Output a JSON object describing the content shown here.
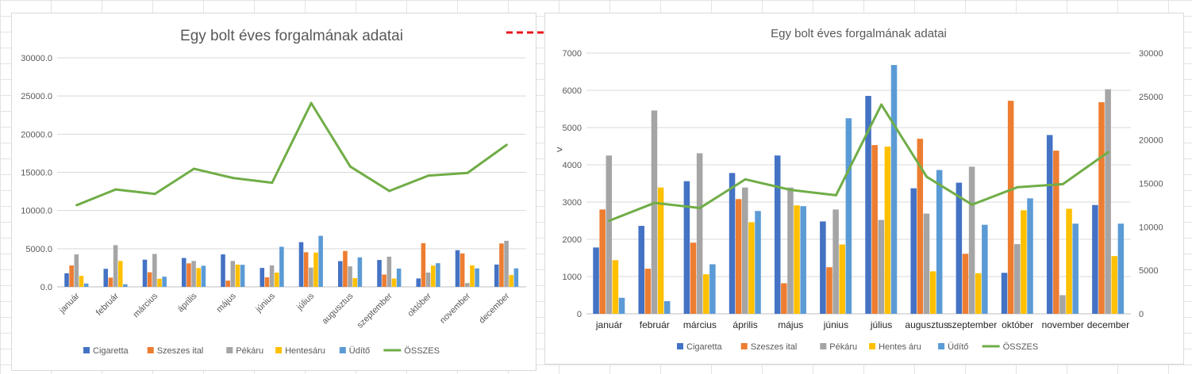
{
  "annotations": {
    "arrow_color": "#e8161c",
    "axis_marker": ">"
  },
  "colors": {
    "Cigaretta": "#4472c4",
    "Szeszes ital": "#ed7d31",
    "Pékáru": "#a5a5a5",
    "Hentesáru": "#ffc000",
    "Üdítő": "#5b9bd5",
    "ÖSSZES": "#70ad47"
  },
  "chart_data": [
    {
      "type": "bar",
      "title": "Egy bolt éves forgalmának adatai",
      "categories": [
        "január",
        "február",
        "március",
        "április",
        "május",
        "június",
        "július",
        "augusztus",
        "szeptember",
        "október",
        "november",
        "december"
      ],
      "ylim": [
        0,
        30000
      ],
      "yticks": [
        "0.0",
        "5000.0",
        "10000.0",
        "15000.0",
        "20000.0",
        "25000.0",
        "30000.0"
      ],
      "grid": true,
      "legend_position": "bottom",
      "series": [
        {
          "name": "Cigaretta",
          "type": "bar",
          "values": [
            1780,
            2360,
            3560,
            3780,
            4250,
            2480,
            5850,
            3370,
            3520,
            1100,
            4800,
            2920
          ]
        },
        {
          "name": "Szeszes ital",
          "type": "bar",
          "values": [
            2800,
            1210,
            1910,
            3080,
            820,
            1250,
            4530,
            4700,
            1610,
            5720,
            4380,
            5680
          ]
        },
        {
          "name": "Pékáru",
          "type": "bar",
          "values": [
            4250,
            5460,
            4310,
            3390,
            3390,
            2800,
            2520,
            2690,
            3950,
            1870,
            500,
            6030
          ]
        },
        {
          "name": "Hentesáru",
          "type": "bar",
          "values": [
            1440,
            3390,
            1060,
            2460,
            2910,
            1860,
            4490,
            1140,
            1090,
            2780,
            2820,
            1550
          ]
        },
        {
          "name": "Üdítő",
          "type": "bar",
          "values": [
            430,
            340,
            1330,
            2760,
            2890,
            5250,
            6680,
            3860,
            2390,
            3100,
            2420,
            2420
          ]
        },
        {
          "name": "ÖSSZES",
          "type": "line",
          "values": [
            10700,
            12760,
            12170,
            15470,
            14260,
            13640,
            24070,
            15760,
            12560,
            14570,
            14920,
            18600
          ]
        }
      ]
    },
    {
      "type": "bar",
      "title": "Egy bolt éves forgalmának adatai",
      "categories": [
        "január",
        "február",
        "március",
        "április",
        "május",
        "június",
        "július",
        "augusztus",
        "szeptember",
        "október",
        "november",
        "december"
      ],
      "ylim": [
        0,
        7000
      ],
      "y2lim": [
        0,
        30000
      ],
      "yticks": [
        "0",
        "1000",
        "2000",
        "3000",
        "4000",
        "5000",
        "6000",
        "7000"
      ],
      "y2ticks": [
        "0",
        "5000",
        "10000",
        "15000",
        "20000",
        "25000",
        "30000"
      ],
      "grid": true,
      "legend_position": "bottom",
      "series": [
        {
          "name": "Cigaretta",
          "type": "bar",
          "values": [
            1780,
            2360,
            3560,
            3780,
            4250,
            2480,
            5850,
            3370,
            3520,
            1100,
            4800,
            2920
          ]
        },
        {
          "name": "Szeszes ital",
          "type": "bar",
          "values": [
            2800,
            1210,
            1910,
            3080,
            820,
            1250,
            4530,
            4700,
            1610,
            5720,
            4380,
            5680
          ]
        },
        {
          "name": "Pékáru",
          "type": "bar",
          "values": [
            4250,
            5460,
            4310,
            3390,
            3390,
            2800,
            2520,
            2690,
            3950,
            1870,
            500,
            6030
          ]
        },
        {
          "name": "Hentes áru",
          "type": "bar",
          "values": [
            1440,
            3390,
            1060,
            2460,
            2910,
            1860,
            4490,
            1140,
            1090,
            2780,
            2820,
            1550
          ]
        },
        {
          "name": "Üdítő",
          "type": "bar",
          "values": [
            430,
            340,
            1330,
            2760,
            2890,
            5250,
            6680,
            3860,
            2390,
            3100,
            2420,
            2420
          ]
        },
        {
          "name": "ÖSSZES",
          "type": "line",
          "axis": "secondary",
          "values": [
            10700,
            12760,
            12170,
            15470,
            14260,
            13640,
            24070,
            15760,
            12560,
            14570,
            14920,
            18600
          ]
        }
      ]
    }
  ]
}
